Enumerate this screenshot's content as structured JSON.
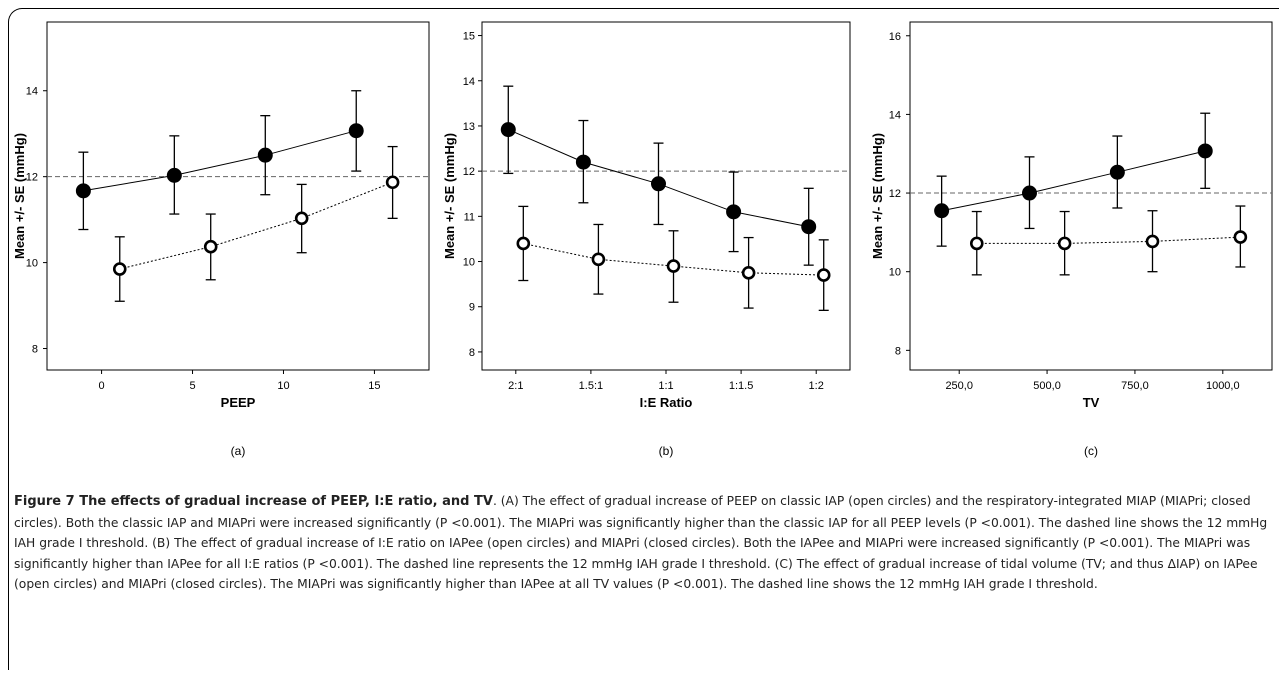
{
  "chart_data": [
    {
      "type": "line",
      "panel_label": "(a)",
      "xlabel": "PEEP",
      "ylabel": "Mean +/- SE (mmHg)",
      "xlim": [
        -3,
        18
      ],
      "ylim": [
        7.5,
        15.6
      ],
      "xticks": [
        0,
        5,
        10,
        15
      ],
      "xtick_labels": [
        "0",
        "5",
        "10",
        "15"
      ],
      "yticks": [
        8,
        10,
        12,
        14
      ],
      "threshold": 12,
      "series": [
        {
          "marker": "filled",
          "line": "solid",
          "x": [
            -1,
            4,
            9,
            14
          ],
          "y": [
            11.67,
            12.03,
            12.5,
            13.07
          ],
          "err_low": [
            10.77,
            11.13,
            11.58,
            12.13
          ],
          "err_high": [
            12.57,
            12.95,
            13.42,
            14.0
          ]
        },
        {
          "marker": "open",
          "line": "dotted",
          "x": [
            1,
            6,
            11,
            16
          ],
          "y": [
            9.85,
            10.37,
            11.03,
            11.87
          ],
          "err_low": [
            9.1,
            9.6,
            10.23,
            11.03
          ],
          "err_high": [
            10.6,
            11.13,
            11.82,
            12.7
          ]
        }
      ]
    },
    {
      "type": "line",
      "panel_label": "(b)",
      "xlabel": "I:E Ratio",
      "ylabel": "Mean +/- SE (mmHg)",
      "xlim": [
        0.55,
        5.45
      ],
      "ylim": [
        7.6,
        15.3
      ],
      "xticks": [
        1,
        2,
        3,
        4,
        5
      ],
      "xtick_labels": [
        "2:1",
        "1.5:1",
        "1:1",
        "1:1.5",
        "1:2"
      ],
      "yticks": [
        8,
        9,
        10,
        11,
        12,
        13,
        14,
        15
      ],
      "threshold": 12,
      "series": [
        {
          "marker": "filled",
          "line": "solid",
          "x": [
            0.9,
            1.9,
            2.9,
            3.9,
            4.9
          ],
          "y": [
            12.92,
            12.2,
            11.72,
            11.1,
            10.77
          ],
          "err_low": [
            11.95,
            11.3,
            10.82,
            10.22,
            9.92
          ],
          "err_high": [
            13.88,
            13.12,
            12.62,
            11.98,
            11.62
          ]
        },
        {
          "marker": "open",
          "line": "dotted",
          "x": [
            1.1,
            2.1,
            3.1,
            4.1,
            5.1
          ],
          "y": [
            10.4,
            10.05,
            9.9,
            9.75,
            9.7
          ],
          "err_low": [
            9.58,
            9.28,
            9.1,
            8.97,
            8.92
          ],
          "err_high": [
            11.22,
            10.82,
            10.68,
            10.53,
            10.48
          ]
        }
      ]
    },
    {
      "type": "line",
      "panel_label": "(c)",
      "xlabel": "TV",
      "ylabel": "Mean +/- SE (mmHg)",
      "xlim": [
        110,
        1140
      ],
      "ylim": [
        7.5,
        16.35
      ],
      "xticks": [
        250,
        500,
        750,
        1000
      ],
      "xtick_labels": [
        "250,0",
        "500,0",
        "750,0",
        "1000,0"
      ],
      "yticks": [
        8,
        10,
        12,
        14,
        16
      ],
      "threshold": 12,
      "series": [
        {
          "marker": "filled",
          "line": "solid",
          "x": [
            200,
            450,
            700,
            950
          ],
          "y": [
            11.55,
            12.0,
            12.53,
            13.07
          ],
          "err_low": [
            10.65,
            11.1,
            11.62,
            12.12
          ],
          "err_high": [
            12.43,
            12.92,
            13.45,
            14.03
          ]
        },
        {
          "marker": "open",
          "line": "dotted",
          "x": [
            300,
            550,
            800,
            1050
          ],
          "y": [
            10.72,
            10.72,
            10.77,
            10.88
          ],
          "err_low": [
            9.92,
            9.92,
            10.0,
            10.12
          ],
          "err_high": [
            11.53,
            11.53,
            11.55,
            11.67
          ]
        }
      ]
    }
  ],
  "caption": {
    "figure_title": "Figure 7 The effects of gradual increase of PEEP, I:E ratio, and TV",
    "text": ". (A) The effect of gradual increase of PEEP on classic IAP (open circles) and the respiratory-integrated MIAP (MIAPri; closed circles). Both the classic IAP and MIAPri were increased significantly (P <0.001). The MIAPri was significantly higher than the classic IAP for all PEEP levels (P <0.001). The dashed line shows the 12 mmHg IAH grade I threshold. (B) The effect of gradual increase of I:E ratio on IAPee (open circles) and MIAPri (closed circles). Both the IAPee and MIAPri were increased significantly (P <0.001). The MIAPri was significantly higher than IAPee for all I:E ratios (P <0.001). The dashed line represents the 12 mmHg IAH grade I threshold. (C) The effect of gradual increase of tidal volume (TV; and thus ΔIAP) on IAPee (open circles) and MIAPri (closed circles). The MIAPri was significantly higher than IAPee at all TV values (P <0.001). The dashed line shows the 12 mmHg IAH grade I threshold."
  }
}
